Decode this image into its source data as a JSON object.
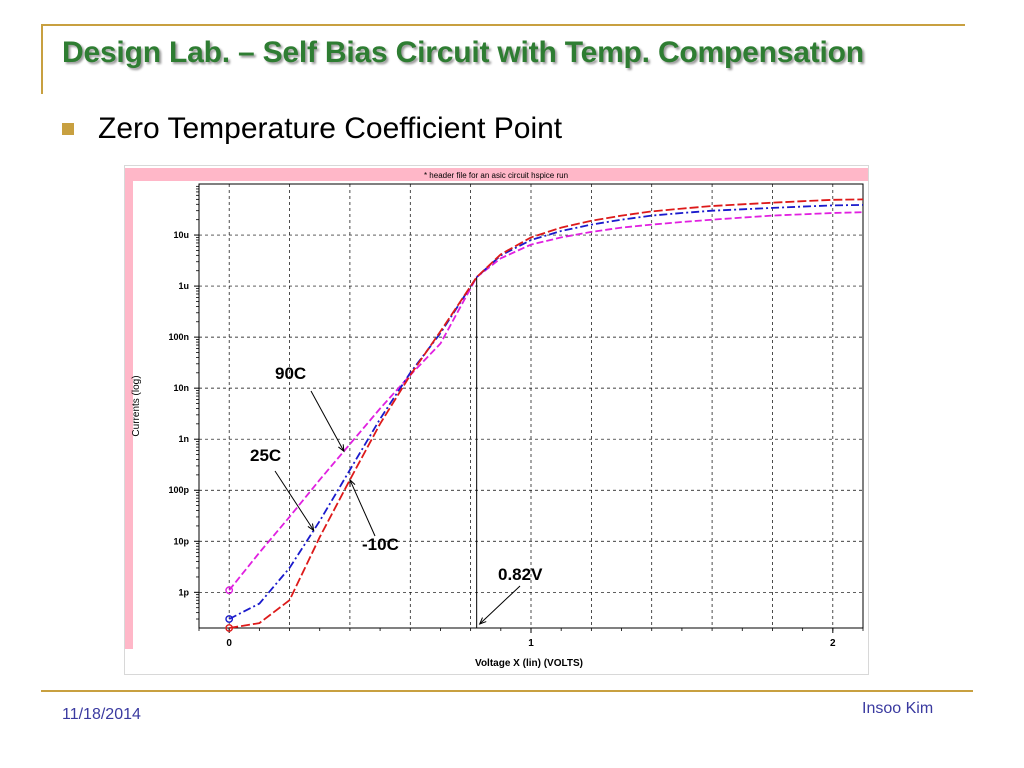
{
  "slide": {
    "title": "Design Lab. – Self Bias Circuit with Temp. Compensation",
    "bullet": "Zero Temperature Coefficient Point",
    "date": "11/18/2014",
    "author": "Insoo Kim",
    "accent_color": "#c8a040",
    "title_color": "#2e7d32"
  },
  "chart_data": {
    "type": "line",
    "title": "* header file for an asic circuit hspice run",
    "xlabel": "Voltage X (lin) (VOLTS)",
    "ylabel": "Currents (log)",
    "xlim": [
      -0.1,
      2.1
    ],
    "ylim": [
      2e-13,
      0.0001
    ],
    "y_scale": "log",
    "grid": true,
    "x_ticks": [
      {
        "value": 0,
        "label": "0"
      },
      {
        "value": 1,
        "label": "1"
      },
      {
        "value": 2,
        "label": "2"
      }
    ],
    "y_ticks": [
      {
        "value": 1e-12,
        "label": "1p"
      },
      {
        "value": 1e-11,
        "label": "10p"
      },
      {
        "value": 1e-10,
        "label": "100p"
      },
      {
        "value": 1e-09,
        "label": "1n"
      },
      {
        "value": 1e-08,
        "label": "10n"
      },
      {
        "value": 1e-07,
        "label": "100n"
      },
      {
        "value": 1e-06,
        "label": "1u"
      },
      {
        "value": 1e-05,
        "label": "10u"
      }
    ],
    "series": [
      {
        "name": "90C",
        "color": "#e020e0",
        "dash": "7,3",
        "x": [
          0,
          0.1,
          0.2,
          0.3,
          0.4,
          0.5,
          0.6,
          0.7,
          0.82,
          0.9,
          1.0,
          1.1,
          1.2,
          1.3,
          1.4,
          1.5,
          1.6,
          1.7,
          1.8,
          1.9,
          2.0,
          2.1
        ],
        "y": [
          1.1e-12,
          6e-12,
          3e-11,
          1.6e-10,
          8e-10,
          4e-09,
          1.8e-08,
          7.5e-08,
          1.5e-06,
          3.5e-06,
          6.5e-06,
          9e-06,
          1.15e-05,
          1.4e-05,
          1.6e-05,
          1.8e-05,
          2e-05,
          2.2e-05,
          2.4e-05,
          2.55e-05,
          2.7e-05,
          2.8e-05
        ]
      },
      {
        "name": "25C",
        "color": "#1a1acc",
        "dash": "8,3,2,3",
        "x": [
          0,
          0.1,
          0.2,
          0.3,
          0.4,
          0.5,
          0.6,
          0.7,
          0.82,
          0.9,
          1.0,
          1.1,
          1.2,
          1.3,
          1.4,
          1.5,
          1.6,
          1.7,
          1.8,
          1.9,
          2.0,
          2.1
        ],
        "y": [
          3e-13,
          6e-13,
          3e-12,
          2.5e-11,
          2.5e-10,
          2.5e-09,
          2e-08,
          1.2e-07,
          1.5e-06,
          4e-06,
          8e-06,
          1.2e-05,
          1.6e-05,
          2e-05,
          2.4e-05,
          2.7e-05,
          3e-05,
          3.2e-05,
          3.4e-05,
          3.6e-05,
          3.8e-05,
          3.9e-05
        ]
      },
      {
        "name": "-10C",
        "color": "#dd1a1a",
        "dash": "9,3",
        "x": [
          0,
          0.1,
          0.2,
          0.3,
          0.4,
          0.5,
          0.6,
          0.7,
          0.82,
          0.9,
          1.0,
          1.1,
          1.2,
          1.3,
          1.4,
          1.5,
          1.6,
          1.7,
          1.8,
          1.9,
          2.0,
          2.1
        ],
        "y": [
          2e-13,
          2.5e-13,
          7e-13,
          1.2e-11,
          1.6e-10,
          2e-09,
          1.8e-08,
          1.3e-07,
          1.5e-06,
          4.2e-06,
          9e-06,
          1.4e-05,
          1.9e-05,
          2.4e-05,
          2.9e-05,
          3.3e-05,
          3.7e-05,
          4e-05,
          4.3e-05,
          4.6e-05,
          4.9e-05,
          5e-05
        ]
      }
    ],
    "annotations": [
      {
        "text": "90C",
        "series": "90C"
      },
      {
        "text": "25C",
        "series": "25C"
      },
      {
        "text": "-10C",
        "series": "-10C"
      },
      {
        "text": "0.82V",
        "x": 0.82
      }
    ],
    "vertical_marker": {
      "x": 0.82
    }
  }
}
